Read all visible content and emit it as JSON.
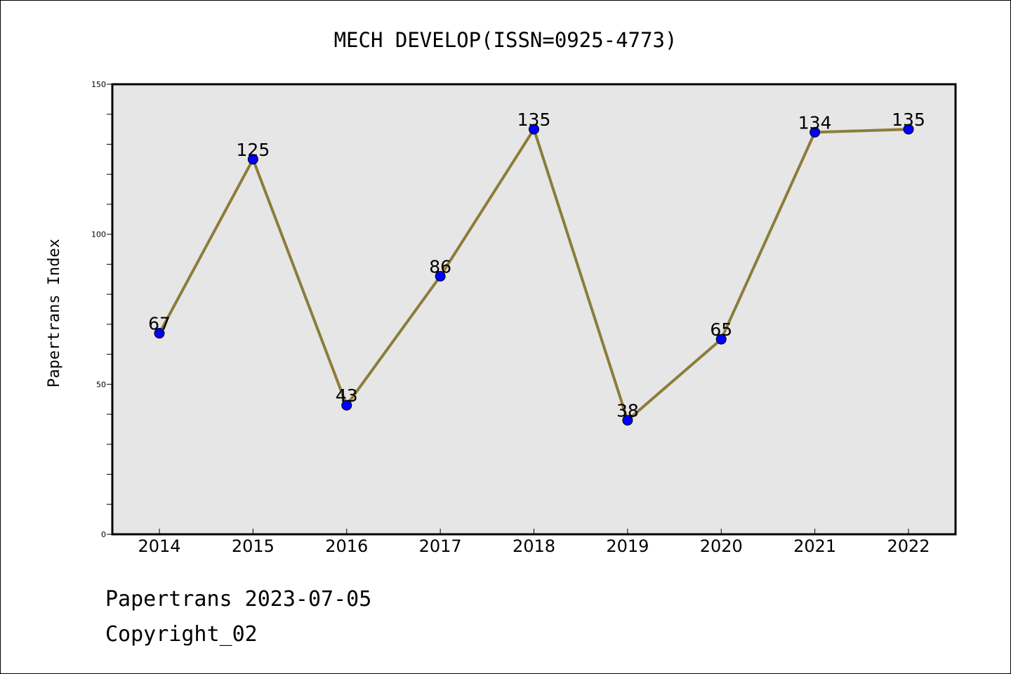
{
  "chart_data": {
    "type": "line",
    "title": "MECH DEVELOP(ISSN=0925-4773)",
    "xlabel": "",
    "ylabel": "Papertrans Index",
    "categories": [
      "2014",
      "2015",
      "2016",
      "2017",
      "2018",
      "2019",
      "2020",
      "2021",
      "2022"
    ],
    "series": [
      {
        "values": [
          67,
          125,
          43,
          86,
          135,
          38,
          65,
          134,
          135
        ]
      }
    ],
    "ylim": [
      0,
      150
    ],
    "yticks": [
      "0",
      "50",
      "100",
      "150"
    ],
    "grid": false,
    "data_labels": true,
    "colors": {
      "line": "#8b7d3a",
      "marker": "#0000ff",
      "plot_bg": "#e6e6e6"
    }
  },
  "footer": {
    "line1": "Papertrans 2023-07-05",
    "line2": "Copyright_02"
  }
}
